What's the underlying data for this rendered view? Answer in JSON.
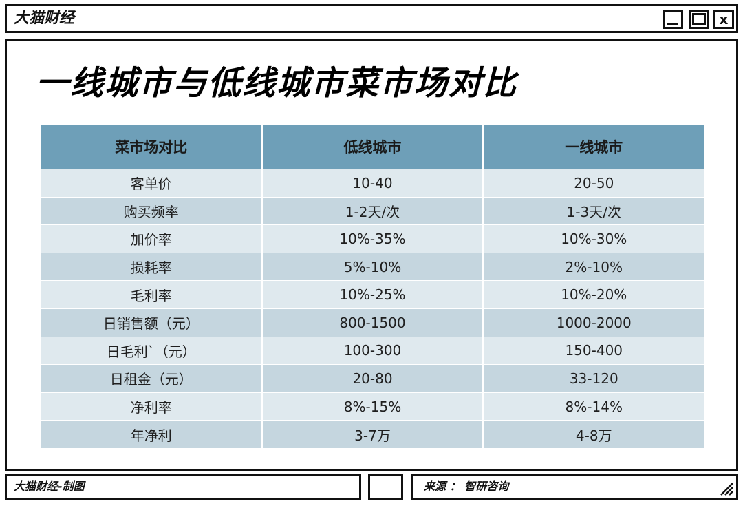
{
  "window": {
    "brand": "大猫财经",
    "close_glyph": "x"
  },
  "main": {
    "title": "一线城市与低线城市菜市场对比",
    "table": {
      "headers": [
        "菜市场对比",
        "低线城市",
        "一线城市"
      ],
      "rows": [
        [
          "客单价",
          "10-40",
          "20-50"
        ],
        [
          "购买频率",
          "1-2天/次",
          "1-3天/次"
        ],
        [
          "加价率",
          "10%-35%",
          "10%-30%"
        ],
        [
          "损耗率",
          "5%-10%",
          "2%-10%"
        ],
        [
          "毛利率",
          "10%-25%",
          "10%-20%"
        ],
        [
          "日销售额（元）",
          "800-1500",
          "1000-2000"
        ],
        [
          "日毛利`（元）",
          "100-300",
          "150-400"
        ],
        [
          "日租金（元）",
          "20-80",
          "33-120"
        ],
        [
          "净利率",
          "8%-15%",
          "8%-14%"
        ],
        [
          "年净利",
          "3-7万",
          "4-8万"
        ]
      ]
    }
  },
  "footer": {
    "credit": "大猫财经-制图",
    "source": "来源 ： 智研咨询"
  },
  "icons": {
    "minimize": "minimize-icon",
    "maximize": "maximize-icon",
    "close": "close-icon",
    "resize": "resize-grip-icon"
  },
  "colors": {
    "header_bg": "#6e9fb8",
    "row_light": "#dfe9ee",
    "row_dark": "#c5d6df",
    "border": "#111111"
  }
}
